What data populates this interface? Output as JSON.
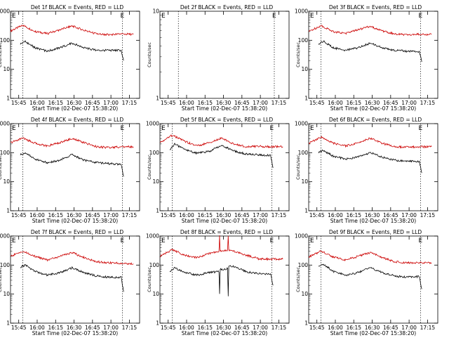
{
  "page": {
    "width": 640,
    "height": 480,
    "background": "#ffffff"
  },
  "colors": {
    "events": "#000000",
    "lld": "#cc0000",
    "axes": "#000000"
  },
  "chart_data": [
    {
      "type": "line",
      "title": "Det 1f BLACK = Events, RED = LLD",
      "xlabel": "Start Time (02-Dec-07 15:38:20)",
      "ylabel": "Counts/sec",
      "xticks": [
        "15:45",
        "16:00",
        "16:15",
        "16:30",
        "16:45",
        "17:00",
        "17:15"
      ],
      "yticks": [
        "1",
        "10",
        "100",
        "1000"
      ],
      "yscale": "log",
      "ylim": [
        1,
        1000
      ],
      "xlim_minutes": [
        0,
        105
      ],
      "markers": [
        "E",
        "E"
      ],
      "vlines_minutes": [
        10,
        91
      ],
      "series": [
        {
          "color": "red",
          "x": [
            0,
            10,
            20,
            30,
            40,
            50,
            60,
            70,
            80,
            90,
            100
          ],
          "y": [
            210,
            330,
            200,
            170,
            230,
            310,
            220,
            165,
            155,
            165,
            160
          ]
        },
        {
          "color": "black",
          "x": [
            8,
            12,
            20,
            30,
            40,
            50,
            60,
            70,
            80,
            90,
            92
          ],
          "y": [
            75,
            90,
            55,
            42,
            55,
            80,
            55,
            45,
            45,
            45,
            20
          ]
        }
      ]
    },
    {
      "type": "line",
      "title": "Det 2f BLACK = Events, RED = LLD",
      "xlabel": "Start Time (02-Dec-07 15:38:20)",
      "ylabel": "Counts/sec",
      "xticks": [
        "15:45",
        "16:00",
        "16:15",
        "16:30",
        "16:45",
        "17:00",
        "17:15"
      ],
      "yticks": [
        "1",
        "10"
      ],
      "yscale": "log",
      "ylim": [
        1,
        10
      ],
      "xlim_minutes": [
        0,
        105
      ],
      "markers": [
        "E",
        "E"
      ],
      "vlines_minutes": [
        15,
        93
      ],
      "series": []
    },
    {
      "type": "line",
      "title": "Det 3f BLACK = Events, RED = LLD",
      "xlabel": "Start Time (02-Dec-07 15:38:20)",
      "ylabel": "Counts/sec",
      "xticks": [
        "15:45",
        "16:00",
        "16:15",
        "16:30",
        "16:45",
        "17:00",
        "17:15"
      ],
      "yticks": [
        "1",
        "10",
        "100",
        "1000"
      ],
      "yscale": "log",
      "ylim": [
        1,
        1000
      ],
      "xlim_minutes": [
        0,
        105
      ],
      "markers": [
        "E",
        "E"
      ],
      "vlines_minutes": [
        10,
        91
      ],
      "series": [
        {
          "color": "red",
          "x": [
            0,
            10,
            20,
            30,
            40,
            50,
            60,
            70,
            80,
            90,
            100
          ],
          "y": [
            200,
            320,
            200,
            170,
            230,
            300,
            210,
            165,
            155,
            160,
            160
          ]
        },
        {
          "color": "black",
          "x": [
            8,
            12,
            20,
            30,
            40,
            50,
            60,
            70,
            80,
            90,
            92
          ],
          "y": [
            75,
            95,
            55,
            45,
            55,
            80,
            55,
            45,
            42,
            40,
            18
          ]
        }
      ]
    },
    {
      "type": "line",
      "title": "Det 4f BLACK = Events, RED = LLD",
      "xlabel": "Start Time (02-Dec-07 15:38:20)",
      "ylabel": "Counts/sec",
      "xticks": [
        "15:45",
        "16:00",
        "16:15",
        "16:30",
        "16:45",
        "17:00",
        "17:15"
      ],
      "yticks": [
        "1",
        "10",
        "100",
        "1000"
      ],
      "yscale": "log",
      "ylim": [
        1,
        1000
      ],
      "xlim_minutes": [
        0,
        105
      ],
      "markers": [
        "E",
        "E"
      ],
      "vlines_minutes": [
        10,
        91
      ],
      "series": [
        {
          "color": "red",
          "x": [
            0,
            10,
            20,
            30,
            40,
            50,
            60,
            70,
            80,
            90,
            100
          ],
          "y": [
            220,
            320,
            210,
            170,
            220,
            310,
            220,
            160,
            150,
            160,
            160
          ]
        },
        {
          "color": "black",
          "x": [
            8,
            12,
            20,
            30,
            40,
            50,
            60,
            70,
            80,
            90,
            92
          ],
          "y": [
            85,
            100,
            60,
            45,
            55,
            85,
            55,
            45,
            42,
            40,
            15
          ]
        }
      ]
    },
    {
      "type": "line",
      "title": "Det 5f BLACK = Events, RED = LLD",
      "xlabel": "Start Time (02-Dec-07 15:38:20)",
      "ylabel": "Counts/sec",
      "xticks": [
        "15:45",
        "16:00",
        "16:15",
        "16:30",
        "16:45",
        "17:00",
        "17:15"
      ],
      "yticks": [
        "1",
        "10",
        "100",
        "1000"
      ],
      "yscale": "log",
      "ylim": [
        1,
        1000
      ],
      "xlim_minutes": [
        0,
        105
      ],
      "markers": [
        "E",
        "E"
      ],
      "vlines_minutes": [
        10,
        91
      ],
      "series": [
        {
          "color": "red",
          "x": [
            0,
            10,
            20,
            30,
            40,
            50,
            60,
            70,
            80,
            90,
            100
          ],
          "y": [
            220,
            400,
            250,
            170,
            220,
            320,
            200,
            160,
            165,
            160,
            160
          ]
        },
        {
          "color": "black",
          "x": [
            8,
            12,
            20,
            30,
            40,
            50,
            60,
            70,
            80,
            90,
            92
          ],
          "y": [
            120,
            200,
            130,
            95,
            110,
            180,
            115,
            90,
            85,
            80,
            30
          ]
        }
      ]
    },
    {
      "type": "line",
      "title": "Det 6f BLACK = Events, RED = LLD",
      "xlabel": "Start Time (02-Dec-07 15:38:20)",
      "ylabel": "Counts/sec",
      "xticks": [
        "15:45",
        "16:00",
        "16:15",
        "16:30",
        "16:45",
        "17:00",
        "17:15"
      ],
      "yticks": [
        "1",
        "10",
        "100",
        "1000"
      ],
      "yscale": "log",
      "ylim": [
        1,
        1000
      ],
      "xlim_minutes": [
        0,
        105
      ],
      "markers": [
        "E",
        "E"
      ],
      "vlines_minutes": [
        10,
        91
      ],
      "series": [
        {
          "color": "red",
          "x": [
            0,
            10,
            20,
            30,
            40,
            50,
            60,
            70,
            80,
            90,
            100
          ],
          "y": [
            210,
            340,
            210,
            170,
            220,
            320,
            210,
            160,
            155,
            160,
            160
          ]
        },
        {
          "color": "black",
          "x": [
            8,
            12,
            20,
            30,
            40,
            50,
            60,
            70,
            80,
            90,
            92
          ],
          "y": [
            100,
            120,
            75,
            60,
            70,
            100,
            70,
            55,
            50,
            50,
            20
          ]
        }
      ]
    },
    {
      "type": "line",
      "title": "Det 7f BLACK = Events, RED = LLD",
      "xlabel": "Start Time (02-Dec-07 15:38:20)",
      "ylabel": "Counts/sec",
      "xticks": [
        "15:45",
        "16:00",
        "16:15",
        "16:30",
        "16:45",
        "17:00",
        "17:15"
      ],
      "yticks": [
        "1",
        "10",
        "100",
        "1000"
      ],
      "yscale": "log",
      "ylim": [
        1,
        1000
      ],
      "xlim_minutes": [
        0,
        105
      ],
      "markers": [
        "E",
        "E"
      ],
      "vlines_minutes": [
        10,
        91
      ],
      "series": [
        {
          "color": "red",
          "x": [
            0,
            10,
            20,
            30,
            40,
            50,
            60,
            70,
            80,
            90,
            100
          ],
          "y": [
            200,
            300,
            200,
            150,
            200,
            270,
            180,
            130,
            120,
            115,
            110
          ]
        },
        {
          "color": "black",
          "x": [
            8,
            12,
            20,
            30,
            40,
            50,
            60,
            70,
            80,
            90,
            92
          ],
          "y": [
            85,
            100,
            60,
            45,
            55,
            80,
            55,
            42,
            38,
            38,
            12
          ]
        }
      ]
    },
    {
      "type": "line",
      "title": "Det 8f BLACK = Events, RED = LLD",
      "xlabel": "Start Time (02-Dec-07 15:38:20)",
      "ylabel": "Counts/sec",
      "xticks": [
        "15:45",
        "16:00",
        "16:15",
        "16:30",
        "16:45",
        "17:00",
        "17:15"
      ],
      "yticks": [
        "1",
        "10",
        "100",
        "1000"
      ],
      "yscale": "log",
      "ylim": [
        1,
        1000
      ],
      "xlim_minutes": [
        0,
        105
      ],
      "markers": [
        "E",
        "E"
      ],
      "vlines_minutes": [
        10,
        91
      ],
      "series": [
        {
          "color": "red",
          "x": [
            0,
            10,
            20,
            30,
            40,
            48,
            48.5,
            49,
            55,
            55.5,
            56,
            60,
            70,
            80,
            90,
            100
          ],
          "y": [
            200,
            340,
            220,
            180,
            250,
            300,
            1000,
            300,
            310,
            1000,
            320,
            300,
            220,
            165,
            160,
            160
          ]
        },
        {
          "color": "black",
          "x": [
            8,
            12,
            20,
            30,
            40,
            48,
            48.5,
            49,
            55,
            55.5,
            56,
            60,
            70,
            80,
            90,
            92
          ],
          "y": [
            60,
            80,
            55,
            45,
            55,
            60,
            10,
            70,
            75,
            8,
            90,
            90,
            60,
            50,
            50,
            20
          ]
        }
      ]
    },
    {
      "type": "line",
      "title": "Det 9f BLACK = Events, RED = LLD",
      "xlabel": "Start Time (02-Dec-07 15:38:20)",
      "ylabel": "Counts/sec",
      "xticks": [
        "15:45",
        "16:00",
        "16:15",
        "16:30",
        "16:45",
        "17:00",
        "17:15"
      ],
      "yticks": [
        "1",
        "10",
        "100",
        "1000"
      ],
      "yscale": "log",
      "ylim": [
        1,
        1000
      ],
      "xlim_minutes": [
        0,
        105
      ],
      "markers": [
        "E",
        "E"
      ],
      "vlines_minutes": [
        10,
        91
      ],
      "series": [
        {
          "color": "red",
          "x": [
            0,
            10,
            20,
            30,
            40,
            50,
            60,
            70,
            80,
            90,
            100
          ],
          "y": [
            190,
            300,
            190,
            150,
            200,
            270,
            180,
            130,
            120,
            120,
            120
          ]
        },
        {
          "color": "black",
          "x": [
            8,
            12,
            20,
            30,
            40,
            50,
            60,
            70,
            80,
            90,
            92
          ],
          "y": [
            90,
            110,
            60,
            45,
            55,
            80,
            55,
            42,
            38,
            40,
            15
          ]
        }
      ]
    }
  ]
}
